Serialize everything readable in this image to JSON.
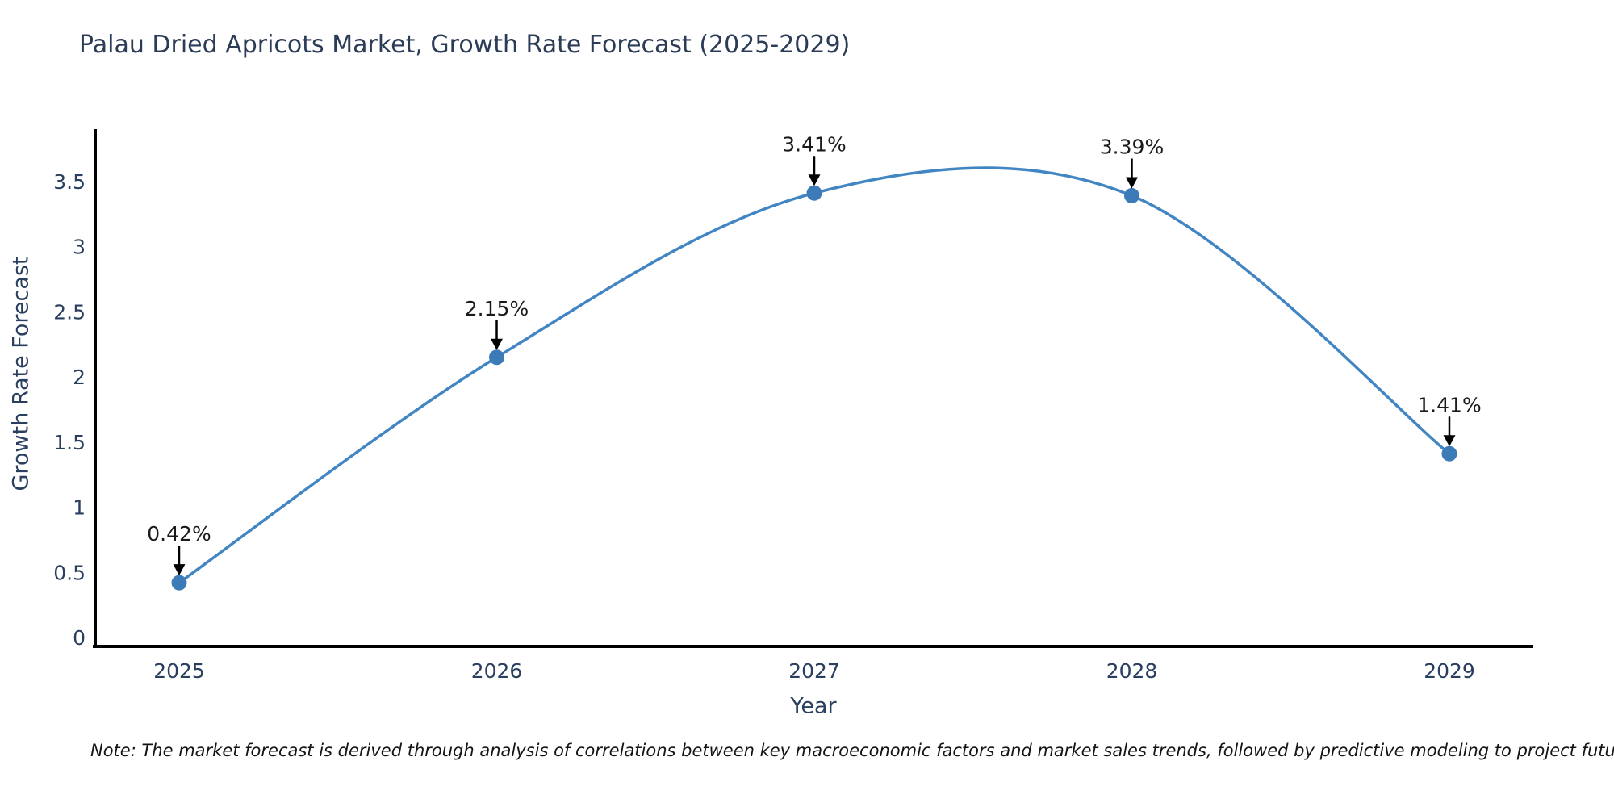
{
  "header": {
    "title": "Palau Dried Apricots Market, Growth Rate Forecast (2025-2029)"
  },
  "footnote": {
    "text": "Note: The market forecast is derived through analysis of correlations between key macroeconomic factors and market sales trends, followed by predictive modeling to project future sales"
  },
  "chart_data": {
    "type": "line",
    "title": "Palau Dried Apricots Market, Growth Rate Forecast (2025-2029)",
    "xlabel": "Year",
    "ylabel": "Growth Rate Forecast",
    "categories": [
      "2025",
      "2026",
      "2027",
      "2028",
      "2029"
    ],
    "values": [
      0.42,
      2.15,
      3.41,
      3.39,
      1.41
    ],
    "data_labels": [
      "0.42%",
      "2.15%",
      "3.41%",
      "3.39%",
      "1.41%"
    ],
    "ytick_labels": [
      "0",
      "0.5",
      "1",
      "1.5",
      "2",
      "2.5",
      "3",
      "3.5"
    ],
    "yticks": [
      0,
      0.5,
      1,
      1.5,
      2,
      2.5,
      3,
      3.5
    ],
    "ylim": [
      0,
      3.9
    ],
    "line_shape": "spline",
    "grid": false,
    "legend": "none",
    "colors": {
      "line": "#4285c3",
      "marker": "#3d7ab8",
      "axis": "#000000",
      "tick_text": "#2a3f5f",
      "annotation_text": "#1a1a1a",
      "arrow": "#000000",
      "background": "#ffffff"
    }
  }
}
